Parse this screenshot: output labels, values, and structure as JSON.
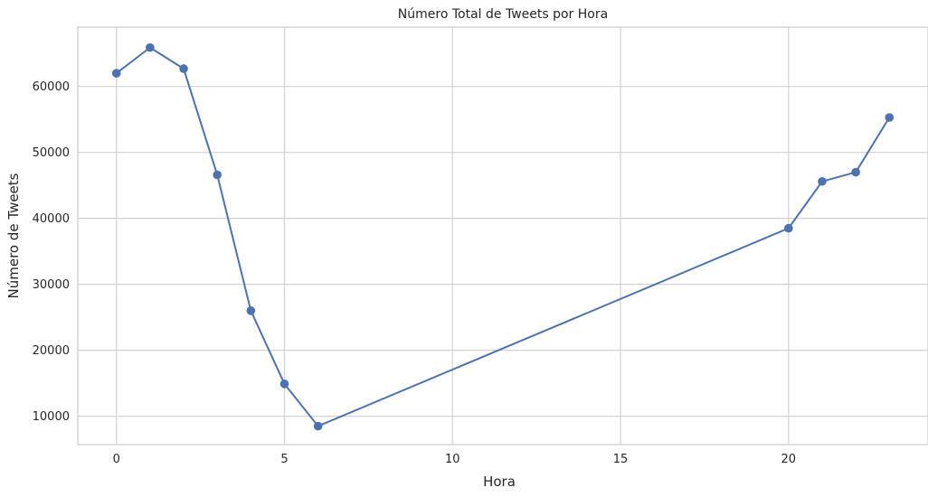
{
  "chart_data": {
    "type": "line",
    "title": "Número Total de Tweets por Hora",
    "xlabel": "Hora",
    "ylabel": "Número de Tweets",
    "xlim": [
      -1.15,
      24.15
    ],
    "ylim": [
      5700,
      69000
    ],
    "xticks": [
      0,
      5,
      10,
      15,
      20
    ],
    "yticks": [
      10000,
      20000,
      30000,
      40000,
      50000,
      60000
    ],
    "grid": true,
    "marker": "circle",
    "colors": {
      "line": "#4c72b0",
      "grid": "#d2d2d2",
      "frame": "#cccccc"
    },
    "series": [
      {
        "x": [
          0,
          1,
          2,
          3,
          4,
          5,
          6,
          20,
          21,
          22,
          23
        ],
        "y": [
          62000,
          65900,
          62700,
          46600,
          26000,
          14900,
          8500,
          38500,
          45600,
          47000,
          55300
        ]
      }
    ]
  }
}
